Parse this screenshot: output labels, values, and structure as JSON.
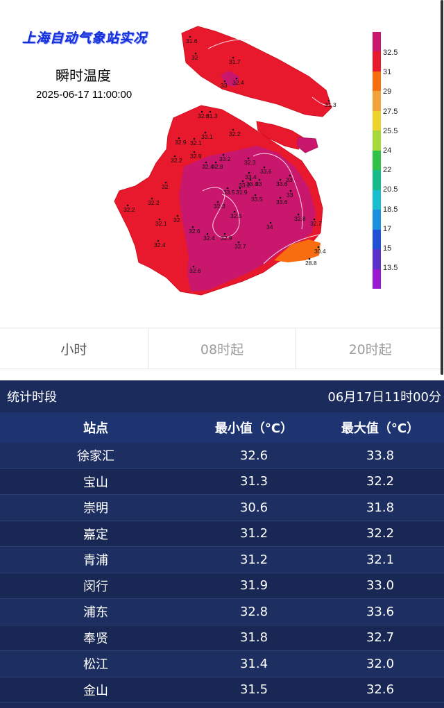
{
  "map": {
    "title": "上海自动气象站实况",
    "subtitle": "瞬时温度",
    "timestamp": "2025-06-17 11:00:00",
    "legend": {
      "labels": [
        "32.5",
        "31",
        "29",
        "27.5",
        "25.5",
        "24",
        "22",
        "20.5",
        "18.5",
        "17",
        "15",
        "13.5"
      ],
      "colors": [
        "#c8176c",
        "#e8192d",
        "#f76d10",
        "#f2a23a",
        "#ecd42c",
        "#a6d83a",
        "#2fc247",
        "#15bb8a",
        "#18bfd0",
        "#1a8fe0",
        "#2050d8",
        "#5a30c8",
        "#9a18d0"
      ]
    },
    "stations": [
      {
        "v": "31.6"
      },
      {
        "v": "32"
      },
      {
        "v": "31.7"
      },
      {
        "v": "33"
      },
      {
        "v": "32.4"
      },
      {
        "v": "31.3"
      },
      {
        "v": "32.6"
      },
      {
        "v": "31.3"
      },
      {
        "v": "32.2"
      },
      {
        "v": "32.9"
      },
      {
        "v": "33.1"
      },
      {
        "v": "32.1"
      },
      {
        "v": "32.2"
      },
      {
        "v": "32.4"
      },
      {
        "v": "32.9"
      },
      {
        "v": "32.8"
      },
      {
        "v": "33.2"
      },
      {
        "v": "32.3"
      },
      {
        "v": "33.4"
      },
      {
        "v": "33.4"
      },
      {
        "v": "33.6"
      },
      {
        "v": "32"
      },
      {
        "v": "33.2"
      },
      {
        "v": "33"
      },
      {
        "v": "33.6"
      },
      {
        "v": "33"
      },
      {
        "v": "32.2"
      },
      {
        "v": "32.1"
      },
      {
        "v": "32"
      },
      {
        "v": "32.6"
      },
      {
        "v": "32.4"
      },
      {
        "v": "32.9"
      },
      {
        "v": "32.7"
      },
      {
        "v": "34"
      },
      {
        "v": "33.5"
      },
      {
        "v": "32.7"
      },
      {
        "v": "30.4"
      },
      {
        "v": "28.8"
      },
      {
        "v": "32.4"
      },
      {
        "v": "32.6"
      },
      {
        "v": "31.9"
      },
      {
        "v": "33.5"
      },
      {
        "v": "33.6"
      },
      {
        "v": "33"
      },
      {
        "v": "32.5"
      },
      {
        "v": "32.3"
      },
      {
        "v": "32.2"
      },
      {
        "v": "32.8"
      }
    ]
  },
  "tabs": [
    {
      "label": "小时",
      "active": true
    },
    {
      "label": "08时起",
      "active": false
    },
    {
      "label": "20时起",
      "active": false
    }
  ],
  "stats": {
    "period_label": "统计时段",
    "period_value": "06月17日11时00分",
    "headers": {
      "station": "站点",
      "min": "最小值（°C）",
      "max": "最大值（°C）"
    },
    "rows": [
      {
        "station": "徐家汇",
        "min": "32.6",
        "max": "33.8"
      },
      {
        "station": "宝山",
        "min": "31.3",
        "max": "32.2"
      },
      {
        "station": "崇明",
        "min": "30.6",
        "max": "31.8"
      },
      {
        "station": "嘉定",
        "min": "31.2",
        "max": "32.2"
      },
      {
        "station": "青浦",
        "min": "31.2",
        "max": "32.1"
      },
      {
        "station": "闵行",
        "min": "31.9",
        "max": "33.0"
      },
      {
        "station": "浦东",
        "min": "32.8",
        "max": "33.6"
      },
      {
        "station": "奉贤",
        "min": "31.8",
        "max": "32.7"
      },
      {
        "station": "松江",
        "min": "31.4",
        "max": "32.0"
      },
      {
        "station": "金山",
        "min": "31.5",
        "max": "32.6"
      }
    ]
  }
}
